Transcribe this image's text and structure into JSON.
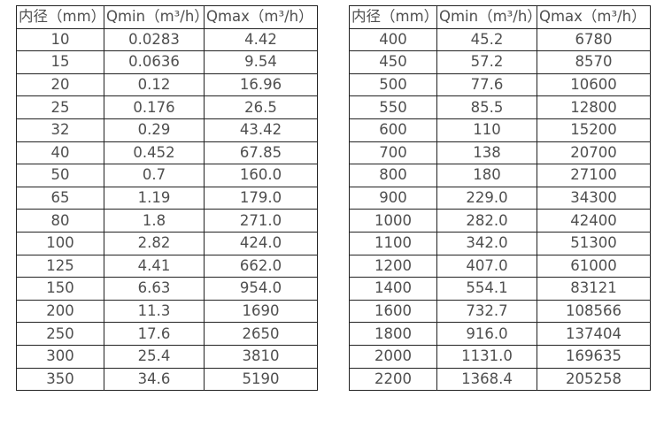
{
  "page": {
    "background_color": "#ffffff",
    "text_color": "#4f4f4f",
    "border_color": "#222222"
  },
  "tables": [
    {
      "name": "flow-spec-table-small-diameters",
      "headers": [
        "内径（mm）",
        "Qmin（m³/h）",
        "Qmax（m³/h）"
      ],
      "rows": [
        [
          "10",
          "0.0283",
          "4.42"
        ],
        [
          "15",
          "0.0636",
          "9.54"
        ],
        [
          "20",
          "0.12",
          "16.96"
        ],
        [
          "25",
          "0.176",
          "26.5"
        ],
        [
          "32",
          "0.29",
          "43.42"
        ],
        [
          "40",
          "0.452",
          "67.85"
        ],
        [
          "50",
          "0.7",
          "160.0"
        ],
        [
          "65",
          "1.19",
          "179.0"
        ],
        [
          "80",
          "1.8",
          "271.0"
        ],
        [
          "100",
          "2.82",
          "424.0"
        ],
        [
          "125",
          "4.41",
          "662.0"
        ],
        [
          "150",
          "6.63",
          "954.0"
        ],
        [
          "200",
          "11.3",
          "1690"
        ],
        [
          "250",
          "17.6",
          "2650"
        ],
        [
          "300",
          "25.4",
          "3810"
        ],
        [
          "350",
          "34.6",
          "5190"
        ]
      ]
    },
    {
      "name": "flow-spec-table-large-diameters",
      "headers": [
        "内径（mm）",
        "Qmin（m³/h）",
        "Qmax（m³/h）"
      ],
      "rows": [
        [
          "400",
          "45.2",
          "6780"
        ],
        [
          "450",
          "57.2",
          "8570"
        ],
        [
          "500",
          "77.6",
          "10600"
        ],
        [
          "550",
          "85.5",
          "12800"
        ],
        [
          "600",
          "110",
          "15200"
        ],
        [
          "700",
          "138",
          "20700"
        ],
        [
          "800",
          "180",
          "27100"
        ],
        [
          "900",
          "229.0",
          "34300"
        ],
        [
          "1000",
          "282.0",
          "42400"
        ],
        [
          "1100",
          "342.0",
          "51300"
        ],
        [
          "1200",
          "407.0",
          "61000"
        ],
        [
          "1400",
          "554.1",
          "83121"
        ],
        [
          "1600",
          "732.7",
          "108566"
        ],
        [
          "1800",
          "916.0",
          "137404"
        ],
        [
          "2000",
          "1131.0",
          "169635"
        ],
        [
          "2200",
          "1368.4",
          "205258"
        ]
      ]
    }
  ]
}
